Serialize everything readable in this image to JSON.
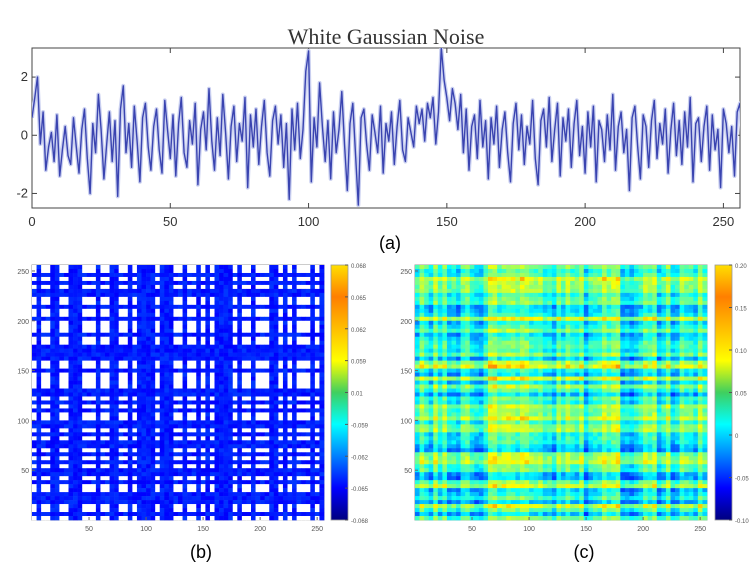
{
  "panel_labels": {
    "a": "(a)",
    "b": "(b)",
    "c": "(c)"
  },
  "chart_data": [
    {
      "panel": "(a)",
      "type": "line",
      "title": "White Gaussian Noise",
      "xlabel": "",
      "ylabel": "",
      "xlim": [
        0,
        256
      ],
      "ylim": [
        -2.5,
        3
      ],
      "xticks": [
        0,
        50,
        100,
        150,
        200,
        250
      ],
      "xtick_labels": [
        "0",
        "50",
        "100",
        "150",
        "200",
        "250"
      ],
      "yticks": [
        -2,
        0,
        2
      ],
      "ytick_labels": [
        "-2",
        "0",
        "2"
      ],
      "grid": false,
      "line_color": "#3a44b0",
      "y": [
        0.6,
        1.3,
        2.0,
        -0.3,
        0.8,
        -1.2,
        -0.4,
        0.1,
        -0.9,
        0.7,
        -1.4,
        -0.5,
        0.3,
        -0.7,
        -1.0,
        0.6,
        -0.4,
        -1.3,
        0.2,
        0.9,
        -0.8,
        -2.0,
        0.4,
        -0.6,
        1.4,
        0.2,
        -1.5,
        -0.3,
        0.8,
        -0.9,
        0.5,
        -2.1,
        0.9,
        1.7,
        -0.6,
        0.4,
        -1.1,
        1.0,
        -0.2,
        -1.6,
        0.6,
        1.1,
        -0.4,
        -1.2,
        0.3,
        0.9,
        -0.5,
        -1.3,
        1.2,
        0.2,
        -0.8,
        0.7,
        -1.4,
        0.4,
        1.3,
        -0.6,
        -1.1,
        0.5,
        -0.3,
        1.1,
        -1.7,
        0.2,
        0.8,
        -0.5,
        1.6,
        -0.2,
        -1.2,
        0.6,
        -0.7,
        1.4,
        0.1,
        -1.5,
        0.3,
        1.0,
        -0.9,
        0.4,
        -0.2,
        1.3,
        -1.8,
        0.7,
        -0.4,
        0.9,
        -1.0,
        0.3,
        1.2,
        -0.6,
        -1.4,
        0.5,
        1.0,
        -0.3,
        0.7,
        -1.1,
        0.4,
        -2.2,
        0.9,
        -0.5,
        1.1,
        -0.8,
        0.2,
        2.2,
        2.9,
        -1.6,
        0.6,
        -0.4,
        1.8,
        0.3,
        -0.9,
        0.5,
        -1.5,
        0.8,
        -0.6,
        0.2,
        1.5,
        -0.3,
        -1.9,
        0.4,
        1.1,
        -0.7,
        -2.4,
        0.6,
        0.9,
        -0.3,
        -1.2,
        0.7,
        0.1,
        -0.6,
        1.0,
        -1.3,
        0.4,
        -0.2,
        0.8,
        -1.0,
        0.3,
        1.2,
        -0.5,
        -0.9,
        0.6,
        0.1,
        -0.4,
        1.0,
        0.4,
        0.9,
        -0.2,
        1.1,
        0.6,
        1.3,
        -0.3,
        0.8,
        3.0,
        1.9,
        1.3,
        0.5,
        1.6,
        1.1,
        0.2,
        1.4,
        -0.6,
        0.9,
        -1.2,
        0.3,
        0.7,
        -0.8,
        1.2,
        -0.4,
        0.5,
        -1.5,
        0.6,
        -0.3,
        1.0,
        -1.1,
        0.2,
        0.8,
        -0.6,
        -1.6,
        0.4,
        1.1,
        -0.5,
        0.7,
        -1.0,
        0.3,
        -0.3,
        1.2,
        -0.8,
        -1.7,
        0.5,
        0.9,
        -0.4,
        1.3,
        -0.9,
        0.2,
        1.1,
        -1.4,
        0.6,
        -0.2,
        0.9,
        -1.1,
        0.4,
        1.2,
        -0.7,
        0.3,
        -1.3,
        0.8,
        -0.4,
        1.0,
        -1.6,
        0.5,
        0.2,
        -0.9,
        0.7,
        -0.5,
        1.4,
        -1.2,
        0.3,
        0.8,
        -0.6,
        0.2,
        -1.9,
        0.6,
        1.0,
        -0.4,
        -1.5,
        0.7,
        0.3,
        -1.1,
        0.5,
        1.2,
        -0.8,
        0.4,
        -0.3,
        0.9,
        -1.3,
        0.2,
        1.1,
        -0.7,
        0.5,
        -1.0,
        0.8,
        -0.4,
        1.3,
        -1.6,
        0.4,
        0.6,
        -0.9,
        0.3,
        1.0,
        -1.2,
        0.7,
        -0.5,
        0.2,
        -1.8,
        0.9,
        0.4,
        -0.6,
        0.3,
        -1.4,
        0.8,
        1.1,
        -0.3,
        0.5
      ]
    },
    {
      "panel": "(b)",
      "type": "heatmap",
      "title": "",
      "xlabel": "",
      "ylabel": "",
      "xlim": [
        0,
        256
      ],
      "ylim": [
        0,
        256
      ],
      "xticks": [
        50,
        100,
        150,
        200,
        250
      ],
      "xtick_labels": [
        "50",
        "100",
        "150",
        "200",
        "250"
      ],
      "yticks": [
        50,
        100,
        150,
        200,
        250
      ],
      "ytick_labels": [
        "50",
        "100",
        "150",
        "200",
        "250"
      ],
      "colorbar_ticks": [
        0,
        1,
        2,
        3,
        4,
        5,
        6,
        7,
        8
      ],
      "colorbar_labels": [
        "-0.068",
        "-0.065",
        "-0.062",
        "-0.059",
        "0.01",
        "0.059",
        "0.062",
        "0.065",
        "0.068"
      ],
      "colorscale": "jet",
      "value_range": [
        0,
        1
      ],
      "grid": false
    },
    {
      "panel": "(c)",
      "type": "heatmap",
      "title": "",
      "xlabel": "",
      "ylabel": "",
      "xlim": [
        0,
        256
      ],
      "ylim": [
        0,
        256
      ],
      "xticks": [
        50,
        100,
        150,
        200,
        250
      ],
      "xtick_labels": [
        "50",
        "100",
        "150",
        "200",
        "250"
      ],
      "yticks": [
        50,
        100,
        150,
        200,
        250
      ],
      "ytick_labels": [
        "50",
        "100",
        "150",
        "200",
        "250"
      ],
      "colorbar_ticks": [
        0,
        1,
        2,
        3,
        4,
        5,
        6
      ],
      "colorbar_labels": [
        "-0.10",
        "-0.05",
        "0",
        "0.05",
        "0.10",
        "0.15",
        "0.20"
      ],
      "colorscale": "jet",
      "value_range": [
        0,
        1
      ],
      "grid": false
    }
  ]
}
